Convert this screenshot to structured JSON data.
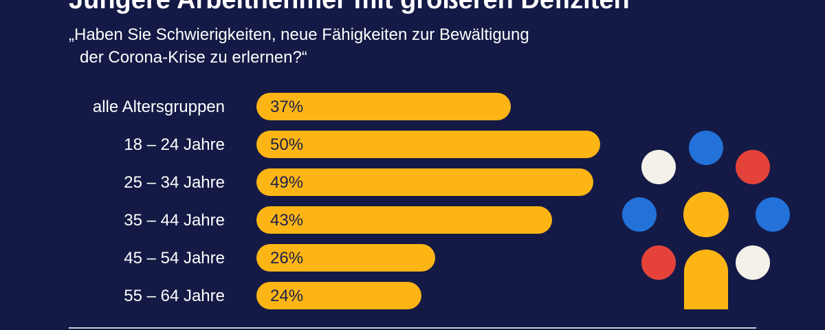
{
  "header": {
    "title": "Jüngere Arbeitnehmer mit größeren Defiziten",
    "question_line1": "„Haben Sie Schwierigkeiten, neue Fähigkeiten zur Bewältigung",
    "question_line2": "der Corona-Krise zu erlernen?“"
  },
  "chart_data": {
    "type": "bar",
    "orientation": "horizontal",
    "categories": [
      "alle Altersgruppen",
      "18 – 24 Jahre",
      "25 – 34 Jahre",
      "35 – 44 Jahre",
      "45 – 54 Jahre",
      "55 – 64 Jahre"
    ],
    "values": [
      37,
      50,
      49,
      43,
      26,
      24
    ],
    "value_labels": [
      "37%",
      "50%",
      "49%",
      "43%",
      "26%",
      "24%"
    ],
    "unit": "%",
    "xlim": [
      0,
      50
    ],
    "grid": false,
    "bar_color": "#fdb515"
  },
  "illustration": {
    "icon": "people-group-icon",
    "colors": {
      "blue": "#2372d9",
      "red": "#e5433a",
      "white": "#f4f1ea",
      "yellow": "#fdb515"
    }
  }
}
